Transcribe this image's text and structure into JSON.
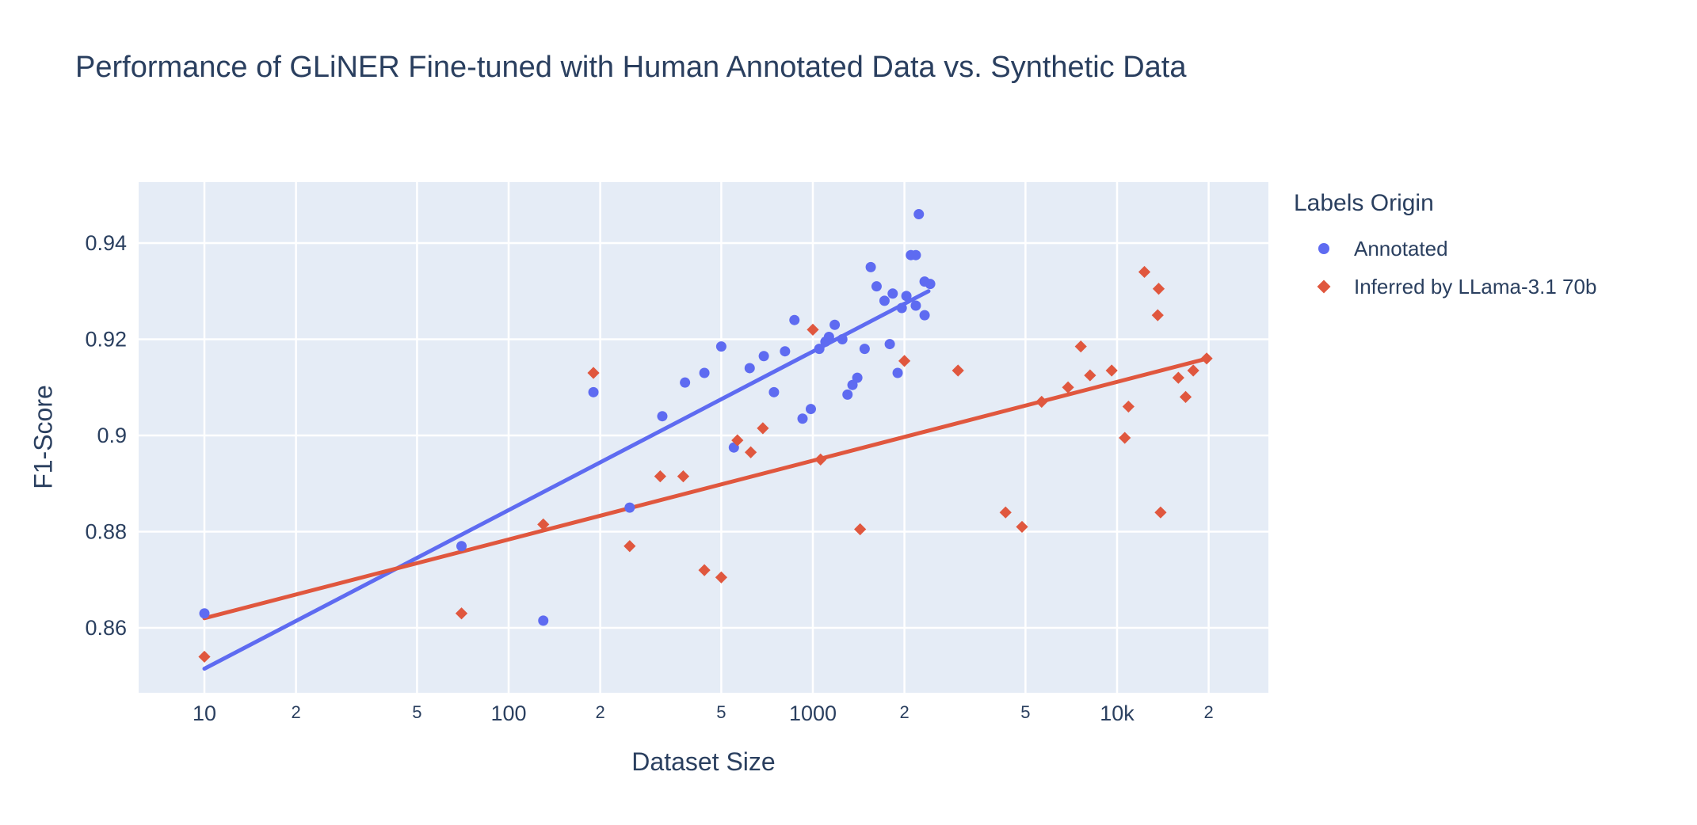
{
  "title": "Performance of GLiNER Fine-tuned with Human Annotated Data vs. Synthetic Data",
  "axes": {
    "x": {
      "title": "Dataset Size",
      "scale": "log",
      "ticks": [
        {
          "value": 10,
          "label": "10",
          "major": true
        },
        {
          "value": 20,
          "label": "2",
          "major": false
        },
        {
          "value": 50,
          "label": "5",
          "major": false
        },
        {
          "value": 100,
          "label": "100",
          "major": true
        },
        {
          "value": 200,
          "label": "2",
          "major": false
        },
        {
          "value": 500,
          "label": "5",
          "major": false
        },
        {
          "value": 1000,
          "label": "1000",
          "major": true
        },
        {
          "value": 2000,
          "label": "2",
          "major": false
        },
        {
          "value": 5000,
          "label": "5",
          "major": false
        },
        {
          "value": 10000,
          "label": "10k",
          "major": true
        },
        {
          "value": 20000,
          "label": "2",
          "major": false
        }
      ]
    },
    "y": {
      "title": "F1-Score",
      "ticks": [
        {
          "value": 0.94,
          "label": "0.94"
        },
        {
          "value": 0.92,
          "label": "0.92"
        },
        {
          "value": 0.9,
          "label": "0.9"
        },
        {
          "value": 0.88,
          "label": "0.88"
        },
        {
          "value": 0.86,
          "label": "0.86"
        }
      ]
    }
  },
  "legend": {
    "title": "Labels Origin",
    "items": [
      {
        "label": "Annotated",
        "marker": "circle",
        "color": "#5E6BF1"
      },
      {
        "label": "Inferred by LLama-3.1 70b",
        "marker": "diamond",
        "color": "#E0573E"
      }
    ]
  },
  "colors": {
    "plot_background": "#E5ECF6",
    "gridline": "#FFFFFF",
    "text": "#2A3F5F",
    "annotated": "#5E6BF1",
    "inferred": "#E0573E"
  },
  "chart_data": {
    "type": "scatter",
    "x_scale": "log",
    "title": "Performance of GLiNER Fine-tuned with Human Annotated Data vs. Synthetic Data",
    "xlabel": "Dataset Size",
    "ylabel": "F1-Score",
    "x_range": [
      6,
      34000
    ],
    "y_range": [
      0.8465,
      0.953
    ],
    "grid": true,
    "legend_position": "right",
    "series": [
      {
        "name": "Annotated",
        "marker": "circle",
        "color": "#5E6BF1",
        "points": [
          [
            10,
            0.863
          ],
          [
            70,
            0.877
          ],
          [
            130,
            0.8615
          ],
          [
            190,
            0.909
          ],
          [
            250,
            0.885
          ],
          [
            320,
            0.904
          ],
          [
            380,
            0.911
          ],
          [
            440,
            0.913
          ],
          [
            500,
            0.9185
          ],
          [
            550,
            0.8975
          ],
          [
            620,
            0.914
          ],
          [
            690,
            0.9165
          ],
          [
            745,
            0.909
          ],
          [
            810,
            0.9175
          ],
          [
            870,
            0.924
          ],
          [
            925,
            0.9035
          ],
          [
            985,
            0.9055
          ],
          [
            1050,
            0.918
          ],
          [
            1100,
            0.9195
          ],
          [
            1130,
            0.9205
          ],
          [
            1180,
            0.923
          ],
          [
            1250,
            0.92
          ],
          [
            1300,
            0.9085
          ],
          [
            1350,
            0.9105
          ],
          [
            1400,
            0.912
          ],
          [
            1480,
            0.918
          ],
          [
            1550,
            0.935
          ],
          [
            1620,
            0.931
          ],
          [
            1720,
            0.928
          ],
          [
            1790,
            0.919
          ],
          [
            1830,
            0.9295
          ],
          [
            1900,
            0.913
          ],
          [
            1960,
            0.9265
          ],
          [
            2030,
            0.929
          ],
          [
            2100,
            0.9375
          ],
          [
            2180,
            0.9375
          ],
          [
            2180,
            0.927
          ],
          [
            2230,
            0.946
          ],
          [
            2330,
            0.932
          ],
          [
            2330,
            0.925
          ],
          [
            2430,
            0.9315
          ]
        ]
      },
      {
        "name": "Inferred by LLama-3.1 70b",
        "marker": "diamond",
        "color": "#E0573E",
        "points": [
          [
            10,
            0.854
          ],
          [
            70,
            0.863
          ],
          [
            130,
            0.8815
          ],
          [
            190,
            0.913
          ],
          [
            250,
            0.877
          ],
          [
            315,
            0.8915
          ],
          [
            375,
            0.8915
          ],
          [
            440,
            0.872
          ],
          [
            500,
            0.8705
          ],
          [
            565,
            0.899
          ],
          [
            625,
            0.8965
          ],
          [
            685,
            0.9015
          ],
          [
            1000,
            0.922
          ],
          [
            1060,
            0.895
          ],
          [
            1430,
            0.8805
          ],
          [
            2000,
            0.9155
          ],
          [
            3000,
            0.9135
          ],
          [
            4300,
            0.884
          ],
          [
            4870,
            0.881
          ],
          [
            5650,
            0.907
          ],
          [
            6900,
            0.91
          ],
          [
            7600,
            0.9185
          ],
          [
            8150,
            0.9125
          ],
          [
            9600,
            0.9135
          ],
          [
            10600,
            0.8995
          ],
          [
            10900,
            0.906
          ],
          [
            12300,
            0.934
          ],
          [
            13600,
            0.925
          ],
          [
            13700,
            0.9305
          ],
          [
            13900,
            0.884
          ],
          [
            15900,
            0.912
          ],
          [
            16800,
            0.908
          ],
          [
            17800,
            0.9135
          ],
          [
            19700,
            0.916
          ]
        ]
      }
    ],
    "trendlines": [
      {
        "series": "Annotated",
        "color": "#5E6BF1",
        "x": [
          10,
          2400
        ],
        "y": [
          0.8515,
          0.93
        ]
      },
      {
        "series": "Inferred by LLama-3.1 70b",
        "color": "#E0573E",
        "x": [
          10,
          19800
        ],
        "y": [
          0.862,
          0.916
        ]
      }
    ]
  }
}
